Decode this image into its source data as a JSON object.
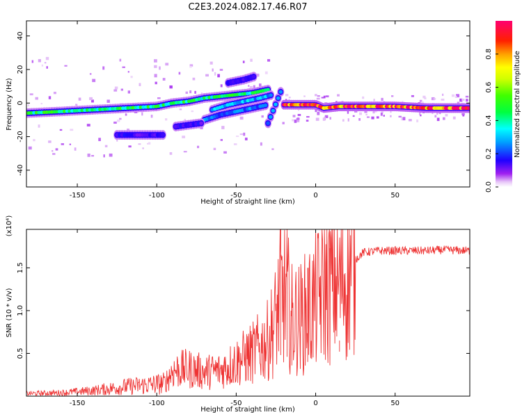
{
  "title": "C2E3.2024.082.17.46.R07",
  "chart_data": [
    {
      "type": "heatmap",
      "xlabel": "Height of straight line (km)",
      "ylabel": "Frequency (Hz)",
      "xlim": [
        -182,
        97
      ],
      "ylim": [
        -50,
        49
      ],
      "xticks": [
        -150,
        -100,
        -50,
        0,
        50
      ],
      "yticks": [
        -40,
        -20,
        0,
        20,
        40
      ],
      "colorbar": {
        "label": "Normalized spectral amplitude",
        "ticks": [
          "0.0",
          "0.2",
          "0.4",
          "0.6",
          "0.8"
        ],
        "range": [
          0,
          1
        ]
      },
      "ridges": [
        {
          "name_hint": "main",
          "points": [
            [
              -182,
              -6
            ],
            [
              -160,
              -5
            ],
            [
              -140,
              -4
            ],
            [
              -120,
              -3
            ],
            [
              -100,
              -2
            ],
            [
              -90,
              0
            ],
            [
              -80,
              1
            ],
            [
              -70,
              3
            ],
            [
              -60,
              4
            ],
            [
              -50,
              5
            ],
            [
              -40,
              6
            ],
            [
              -30,
              8
            ]
          ],
          "amplitude": 0.45
        },
        {
          "points": [
            [
              -65,
              -4
            ],
            [
              -55,
              -1
            ],
            [
              -45,
              1
            ],
            [
              -35,
              3
            ],
            [
              -27,
              5
            ]
          ],
          "amplitude": 0.3
        },
        {
          "points": [
            [
              -70,
              -10
            ],
            [
              -60,
              -7
            ],
            [
              -50,
              -5
            ],
            [
              -40,
              -3
            ],
            [
              -30,
              -1
            ]
          ],
          "amplitude": 0.25
        },
        {
          "points": [
            [
              -30,
              -12
            ],
            [
              -27,
              -5
            ],
            [
              -24,
              2
            ],
            [
              -21,
              9
            ]
          ],
          "amplitude": 0.25
        },
        {
          "points": [
            [
              -55,
              12
            ],
            [
              -45,
              14
            ],
            [
              -38,
              16
            ]
          ],
          "amplitude": 0.15
        },
        {
          "points": [
            [
              -125,
              -19
            ],
            [
              -110,
              -19
            ],
            [
              -95,
              -19
            ]
          ],
          "amplitude": 0.15
        },
        {
          "points": [
            [
              -88,
              -14
            ],
            [
              -80,
              -13
            ],
            [
              -72,
              -12
            ]
          ],
          "amplitude": 0.15
        },
        {
          "points": [
            [
              -20,
              -1
            ],
            [
              -10,
              -1
            ],
            [
              0,
              -1
            ],
            [
              5,
              -3
            ],
            [
              15,
              -2
            ],
            [
              30,
              -2
            ],
            [
              50,
              -2
            ],
            [
              70,
              -3
            ],
            [
              97,
              -3
            ]
          ],
          "amplitude": 0.95
        }
      ]
    },
    {
      "type": "line",
      "xlabel": "Height of straight line (km)",
      "ylabel": "SNR (10 * v/v)",
      "y_multiplier": "(x10⁴)",
      "xlim": [
        -182,
        97
      ],
      "ylim": [
        0,
        19500
      ],
      "xticks": [
        -150,
        -100,
        -50,
        0,
        50
      ],
      "yticks": [
        "0.5",
        "1.0",
        "1.5"
      ],
      "color": "#ee3333",
      "trend": [
        [
          -182,
          300
        ],
        [
          -160,
          400
        ],
        [
          -140,
          650
        ],
        [
          -120,
          1100
        ],
        [
          -100,
          1400
        ],
        [
          -95,
          1500
        ],
        [
          -90,
          3000
        ],
        [
          -80,
          3200
        ],
        [
          -70,
          2800
        ],
        [
          -60,
          3000
        ],
        [
          -50,
          4000
        ],
        [
          -40,
          5000
        ],
        [
          -30,
          6500
        ],
        [
          -25,
          9000
        ],
        [
          -22,
          12000
        ],
        [
          -18,
          11500
        ],
        [
          -15,
          9000
        ],
        [
          -10,
          9000
        ],
        [
          -5,
          10000
        ],
        [
          0,
          11000
        ],
        [
          5,
          12500
        ],
        [
          10,
          13500
        ],
        [
          15,
          13000
        ],
        [
          20,
          14500
        ],
        [
          25,
          16000
        ],
        [
          30,
          16800
        ],
        [
          40,
          17000
        ],
        [
          50,
          17000
        ],
        [
          60,
          17000
        ],
        [
          70,
          17000
        ],
        [
          80,
          17100
        ],
        [
          97,
          17000
        ]
      ],
      "spikes": [
        [
          -22,
          19500
        ],
        [
          -18,
          19500
        ],
        [
          -15,
          11500
        ],
        [
          -5,
          15000
        ],
        [
          9,
          17300
        ],
        [
          15,
          6500
        ]
      ]
    }
  ]
}
